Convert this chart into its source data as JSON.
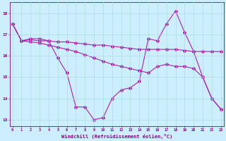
{
  "xlabel": "Windchill (Refroidissement éolien,°C)",
  "x": [
    0,
    1,
    2,
    3,
    4,
    5,
    6,
    7,
    8,
    9,
    10,
    11,
    12,
    13,
    14,
    15,
    16,
    17,
    18,
    19,
    20,
    21,
    22,
    23
  ],
  "line1": [
    17.5,
    16.7,
    16.8,
    16.8,
    16.7,
    15.9,
    15.2,
    13.6,
    13.6,
    13.0,
    13.1,
    14.0,
    14.4,
    14.5,
    14.8,
    16.8,
    16.7,
    17.5,
    18.1,
    17.1,
    16.2,
    15.0,
    14.0,
    13.5
  ],
  "line2": [
    17.5,
    16.7,
    16.75,
    16.7,
    16.7,
    16.65,
    16.65,
    16.6,
    16.55,
    16.5,
    16.5,
    16.45,
    16.4,
    16.35,
    16.3,
    16.3,
    16.3,
    16.3,
    16.3,
    16.25,
    16.2,
    16.2,
    16.2,
    16.2
  ],
  "line3": [
    17.5,
    16.7,
    16.65,
    16.6,
    16.5,
    16.4,
    16.3,
    16.2,
    16.05,
    15.9,
    15.75,
    15.6,
    15.5,
    15.4,
    15.3,
    15.2,
    15.5,
    15.6,
    15.5,
    15.5,
    15.4,
    15.0,
    14.0,
    13.5
  ],
  "line_color": "#aa22aa",
  "bg_color": "#cceeff",
  "grid_color": "#aadddd",
  "text_color": "#880088",
  "ylim": [
    12.7,
    18.5
  ],
  "xlim": [
    -0.3,
    23.3
  ],
  "yticks": [
    13,
    14,
    15,
    16,
    17,
    18
  ],
  "xticks": [
    0,
    1,
    2,
    3,
    4,
    5,
    6,
    7,
    8,
    9,
    10,
    11,
    12,
    13,
    14,
    15,
    16,
    17,
    18,
    19,
    20,
    21,
    22,
    23
  ]
}
